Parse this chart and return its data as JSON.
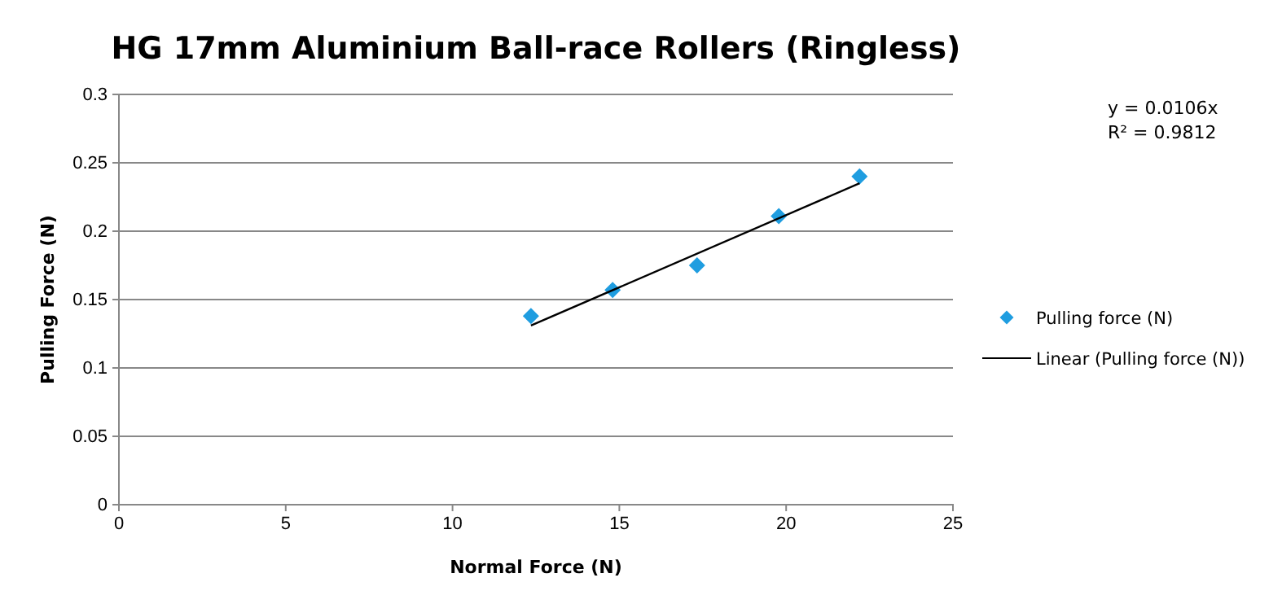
{
  "chart_data": {
    "type": "scatter",
    "title": "HG 17mm Aluminium Ball-race Rollers (Ringless)",
    "xlabel": "Normal Force (N)",
    "ylabel": "Pulling Force (N)",
    "series": [
      {
        "name": "Pulling force (N)",
        "color": "#1f9de0",
        "marker": "diamond",
        "x": [
          12.35,
          14.8,
          17.33,
          19.78,
          22.2
        ],
        "values": [
          0.138,
          0.157,
          0.175,
          0.211,
          0.24
        ]
      },
      {
        "name": "Linear (Pulling force (N))",
        "type": "line",
        "color": "#000000",
        "marker": "none",
        "line_style": "solid",
        "x": [
          12.35,
          22.2
        ],
        "values": [
          0.131,
          0.235
        ]
      }
    ],
    "xlim": [
      0,
      25
    ],
    "xticks": [
      0,
      5,
      10,
      15,
      20,
      25
    ],
    "ylim": [
      0,
      0.3
    ],
    "yticks": [
      0,
      0.05,
      0.1,
      0.15,
      0.2,
      0.25,
      0.3
    ],
    "grid": "y",
    "legend": "right",
    "annotations": [
      "y = 0.0106x",
      "R² = 0.9812"
    ]
  }
}
